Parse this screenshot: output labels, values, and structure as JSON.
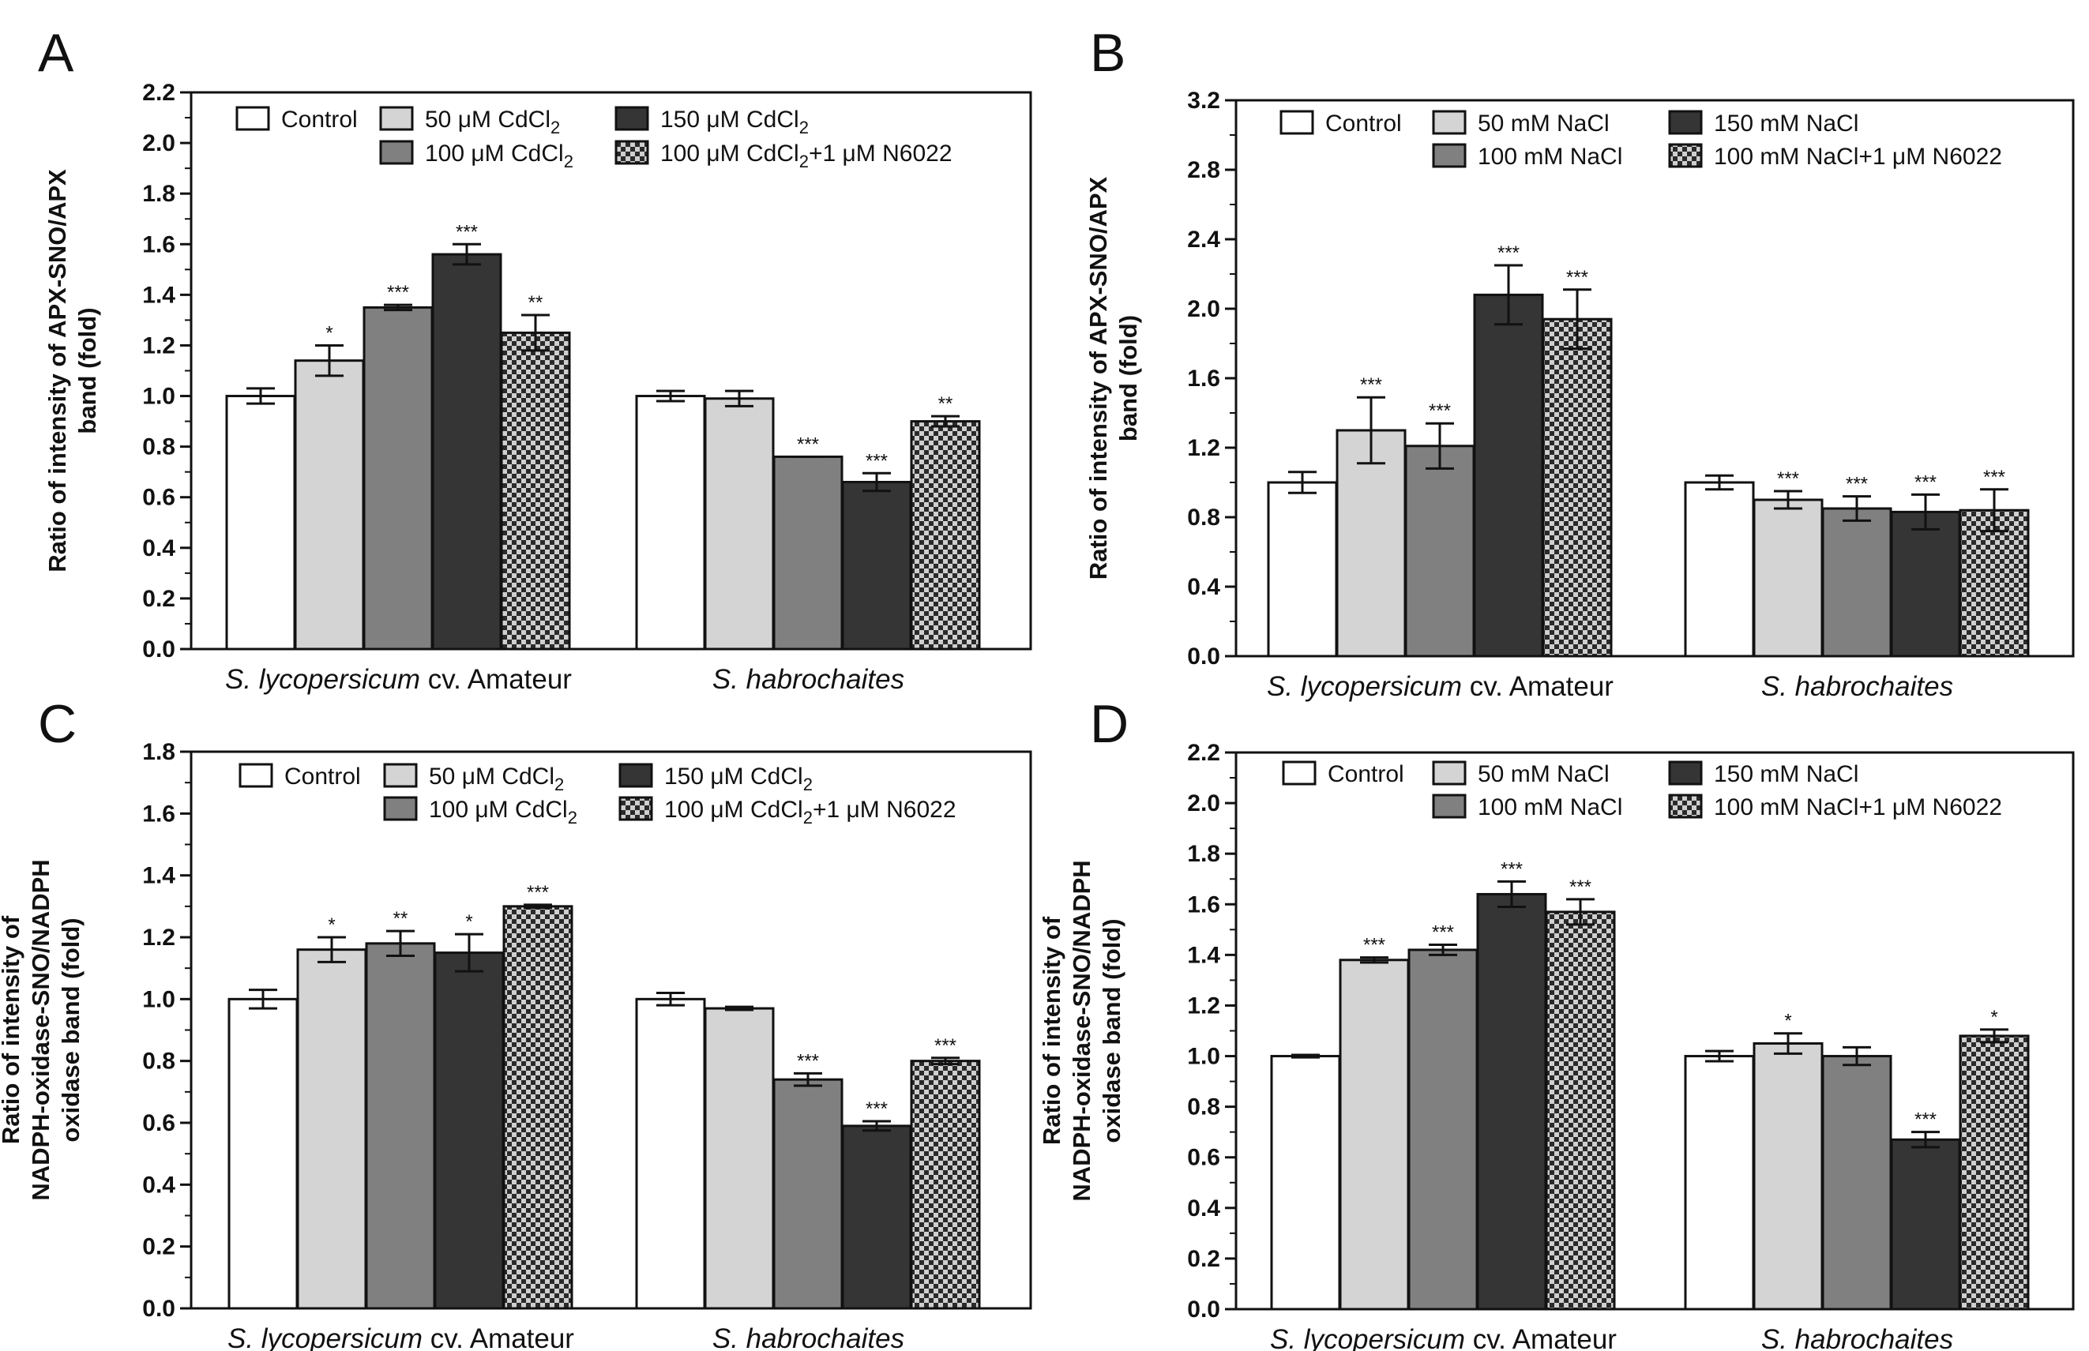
{
  "figure": {
    "units": {
      "cd": "μM CdCl",
      "na": "mM NaCl"
    }
  },
  "chart_data": [
    {
      "panel": "A",
      "type": "bar",
      "ylabel": [
        "Ratio of intensity of APX-SNO/APX",
        "band (fold)"
      ],
      "ylim": [
        0,
        2.2
      ],
      "ytick_step": 0.2,
      "ytick_decimals": 1,
      "groups": [
        {
          "plain": "",
          "italic": "S. lycopersicum",
          "suffix": " cv. Amateur"
        },
        {
          "plain": "",
          "italic": "S. habrochaites",
          "suffix": ""
        }
      ],
      "legend": [
        "Control",
        "50 μM CdCl2",
        "100 μM CdCl2",
        "150 μM CdCl2",
        "100 μM CdCl2+1 μM N6022"
      ],
      "series": [
        {
          "name": "Control",
          "values": [
            1.0,
            1.0
          ],
          "errors": [
            0.03,
            0.02
          ],
          "sig": [
            "",
            ""
          ]
        },
        {
          "name": "50 μM CdCl2",
          "values": [
            1.14,
            0.99
          ],
          "errors": [
            0.06,
            0.03
          ],
          "sig": [
            "*",
            ""
          ]
        },
        {
          "name": "100 μM CdCl2",
          "values": [
            1.35,
            0.76
          ],
          "errors": [
            0.01,
            0.0
          ],
          "sig": [
            "***",
            "***"
          ]
        },
        {
          "name": "150 μM CdCl2",
          "values": [
            1.56,
            0.66
          ],
          "errors": [
            0.04,
            0.035
          ],
          "sig": [
            "***",
            "***"
          ]
        },
        {
          "name": "100 μM CdCl2+1 μM N6022",
          "values": [
            1.25,
            0.9
          ],
          "errors": [
            0.07,
            0.02
          ],
          "sig": [
            "**",
            "**"
          ]
        }
      ]
    },
    {
      "panel": "B",
      "type": "bar",
      "ylabel": [
        "Ratio of intensity of APX-SNO/APX",
        "band (fold)"
      ],
      "ylim": [
        0,
        3.2
      ],
      "ytick_step": 0.4,
      "ytick_decimals": 1,
      "groups": [
        {
          "plain": "",
          "italic": "S. lycopersicum",
          "suffix": " cv. Amateur"
        },
        {
          "plain": "",
          "italic": "S. habrochaites",
          "suffix": ""
        }
      ],
      "legend": [
        "Control",
        "50 mM NaCl",
        "100 mM NaCl",
        "150 mM NaCl",
        "100 mM NaCl+1 μM N6022"
      ],
      "series": [
        {
          "name": "Control",
          "values": [
            1.0,
            1.0
          ],
          "errors": [
            0.06,
            0.04
          ],
          "sig": [
            "",
            ""
          ]
        },
        {
          "name": "50 mM NaCl",
          "values": [
            1.3,
            0.9
          ],
          "errors": [
            0.19,
            0.05
          ],
          "sig": [
            "***",
            "***"
          ]
        },
        {
          "name": "100 mM NaCl",
          "values": [
            1.21,
            0.85
          ],
          "errors": [
            0.13,
            0.07
          ],
          "sig": [
            "***",
            "***"
          ]
        },
        {
          "name": "150 mM NaCl",
          "values": [
            2.08,
            0.83
          ],
          "errors": [
            0.17,
            0.1
          ],
          "sig": [
            "***",
            "***"
          ]
        },
        {
          "name": "100 mM NaCl+1 μM N6022",
          "values": [
            1.94,
            0.84
          ],
          "errors": [
            0.17,
            0.12
          ],
          "sig": [
            "***",
            "***"
          ]
        }
      ]
    },
    {
      "panel": "C",
      "type": "bar",
      "ylabel": [
        "Ratio of intensity of",
        "NADPH-oxidase-SNO/NADPH",
        "oxidase band (fold)"
      ],
      "ylim": [
        0,
        1.8
      ],
      "ytick_step": 0.2,
      "ytick_decimals": 1,
      "groups": [
        {
          "plain": "",
          "italic": "S. lycopersicum",
          "suffix": " cv. Amateur"
        },
        {
          "plain": "",
          "italic": "S. habrochaites",
          "suffix": ""
        }
      ],
      "legend": [
        "Control",
        "50 μM CdCl2",
        "100 μM CdCl2",
        "150 μM CdCl2",
        "100 μM CdCl2+1 μM N6022"
      ],
      "series": [
        {
          "name": "Control",
          "values": [
            1.0,
            1.0
          ],
          "errors": [
            0.03,
            0.02
          ],
          "sig": [
            "",
            ""
          ]
        },
        {
          "name": "50 μM CdCl2",
          "values": [
            1.16,
            0.97
          ],
          "errors": [
            0.04,
            0.005
          ],
          "sig": [
            "*",
            ""
          ]
        },
        {
          "name": "100 μM CdCl2",
          "values": [
            1.18,
            0.74
          ],
          "errors": [
            0.04,
            0.02
          ],
          "sig": [
            "**",
            "***"
          ]
        },
        {
          "name": "150 μM CdCl2",
          "values": [
            1.15,
            0.59
          ],
          "errors": [
            0.06,
            0.015
          ],
          "sig": [
            "*",
            "***"
          ]
        },
        {
          "name": "100 μM CdCl2+1 μM N6022",
          "values": [
            1.3,
            0.8
          ],
          "errors": [
            0.005,
            0.01
          ],
          "sig": [
            "***",
            "***"
          ]
        }
      ]
    },
    {
      "panel": "D",
      "type": "bar",
      "ylabel": [
        "Ratio of intensity of",
        "NADPH-oxidase-SNO/NADPH",
        "oxidase band (fold)"
      ],
      "ylim": [
        0,
        2.2
      ],
      "ytick_step": 0.2,
      "ytick_decimals": 1,
      "groups": [
        {
          "plain": "",
          "italic": "S. lycopersicum",
          "suffix": " cv. Amateur"
        },
        {
          "plain": "",
          "italic": "S. habrochaites",
          "suffix": ""
        }
      ],
      "legend": [
        "Control",
        "50 mM NaCl",
        "100 mM NaCl",
        "150 mM NaCl",
        "100 mM NaCl+1 μM N6022"
      ],
      "series": [
        {
          "name": "Control",
          "values": [
            1.0,
            1.0
          ],
          "errors": [
            0.005,
            0.02
          ],
          "sig": [
            "",
            ""
          ]
        },
        {
          "name": "50 mM NaCl",
          "values": [
            1.38,
            1.05
          ],
          "errors": [
            0.01,
            0.04
          ],
          "sig": [
            "***",
            "*"
          ]
        },
        {
          "name": "100 mM NaCl",
          "values": [
            1.42,
            1.0
          ],
          "errors": [
            0.02,
            0.035
          ],
          "sig": [
            "***",
            ""
          ]
        },
        {
          "name": "150 mM NaCl",
          "values": [
            1.64,
            0.67
          ],
          "errors": [
            0.05,
            0.03
          ],
          "sig": [
            "***",
            "***"
          ]
        },
        {
          "name": "100 mM NaCl+1 μM N6022",
          "values": [
            1.57,
            1.08
          ],
          "errors": [
            0.05,
            0.025
          ],
          "sig": [
            "***",
            "*"
          ]
        }
      ]
    }
  ]
}
